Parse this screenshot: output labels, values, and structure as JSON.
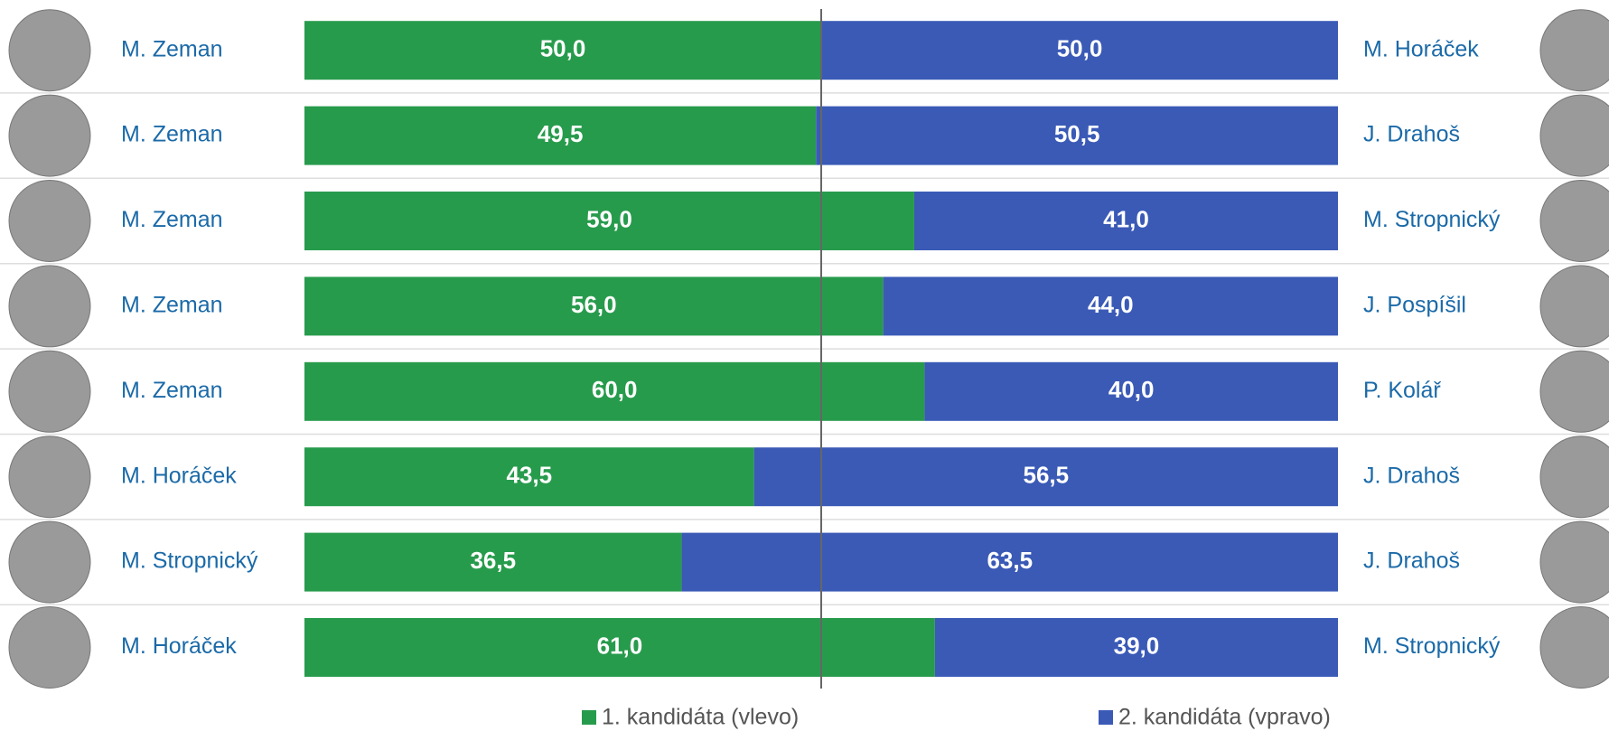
{
  "chart_data": {
    "type": "stacked-bar-100",
    "categories": [
      "M. Zeman",
      "M. Zeman",
      "M. Zeman",
      "M. Zeman",
      "M. Zeman",
      "M. Horáček",
      "M. Stropnický",
      "M. Horáček"
    ],
    "right_categories": [
      "M. Horáček",
      "J. Drahoš",
      "M. Stropnický",
      "J. Pospíšil",
      "P. Kolář",
      "J. Drahoš",
      "J. Drahoš",
      "M. Stropnický"
    ],
    "xlim": [
      0,
      100
    ],
    "series": [
      {
        "name": "1. kandidáta (vlevo)",
        "color": "#279b4c",
        "values": [
          50,
          49.5,
          59,
          56,
          60,
          43.5,
          36.5,
          61
        ],
        "value_labels": [
          "50,0",
          "49,5",
          "59,0",
          "56,0",
          "60,0",
          "43,5",
          "36,5",
          "61,0"
        ]
      },
      {
        "name": "2. kandidáta (vpravo)",
        "color": "#3a5ab6",
        "values": [
          50,
          50.5,
          41,
          44,
          40,
          56.5,
          63.5,
          39
        ],
        "value_labels": [
          "50,0",
          "50,5",
          "41,0",
          "44,0",
          "40,0",
          "56,5",
          "63,5",
          "39,0"
        ]
      }
    ]
  }
}
